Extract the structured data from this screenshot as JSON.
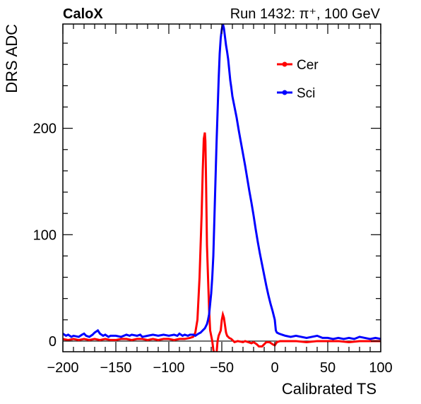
{
  "header": {
    "experiment": "CaloX",
    "run_info": "Run 1432:   π⁺, 100 GeV"
  },
  "chart_data": {
    "type": "line",
    "xlabel": "Calibrated TS",
    "ylabel": "DRS ADC",
    "xlim": [
      -200,
      100
    ],
    "ylim": [
      -10,
      298
    ],
    "x_ticks": [
      -200,
      -150,
      -100,
      -50,
      0,
      50,
      100
    ],
    "x_tick_labels": [
      "−200",
      "−150",
      "−100",
      "−50",
      "0",
      "50",
      "100"
    ],
    "y_ticks": [
      0,
      100,
      200
    ],
    "y_tick_labels": [
      "0",
      "100",
      "200"
    ],
    "zero_line": true,
    "grid": false,
    "legend_position": "top-right",
    "series": [
      {
        "name": "Cer",
        "color": "#ff0000",
        "points": [
          [
            -200,
            2
          ],
          [
            -195,
            1
          ],
          [
            -190,
            2
          ],
          [
            -185,
            1
          ],
          [
            -180,
            2
          ],
          [
            -175,
            1
          ],
          [
            -170,
            2
          ],
          [
            -165,
            1
          ],
          [
            -160,
            2
          ],
          [
            -155,
            1
          ],
          [
            -150,
            1
          ],
          [
            -145,
            2
          ],
          [
            -140,
            2
          ],
          [
            -135,
            1
          ],
          [
            -130,
            2
          ],
          [
            -125,
            2
          ],
          [
            -120,
            1
          ],
          [
            -115,
            2
          ],
          [
            -110,
            1
          ],
          [
            -105,
            2
          ],
          [
            -100,
            2
          ],
          [
            -95,
            1
          ],
          [
            -90,
            2
          ],
          [
            -85,
            2
          ],
          [
            -80,
            3
          ],
          [
            -77,
            4
          ],
          [
            -75,
            8
          ],
          [
            -73,
            20
          ],
          [
            -71,
            60
          ],
          [
            -69,
            120
          ],
          [
            -68,
            160
          ],
          [
            -67,
            190
          ],
          [
            -66,
            196
          ],
          [
            -65.5,
            188
          ],
          [
            -65,
            160
          ],
          [
            -64,
            90
          ],
          [
            -63,
            60
          ],
          [
            -62,
            30
          ],
          [
            -61,
            10
          ],
          [
            -60,
            5
          ],
          [
            -59,
            0
          ],
          [
            -58,
            -8
          ],
          [
            -57,
            -12
          ],
          [
            -55,
            -12
          ],
          [
            -54,
            0
          ],
          [
            -53,
            5
          ],
          [
            -51,
            10
          ],
          [
            -50,
            20
          ],
          [
            -49,
            25
          ],
          [
            -48,
            22
          ],
          [
            -47,
            15
          ],
          [
            -46,
            8
          ],
          [
            -45,
            5
          ],
          [
            -43,
            3
          ],
          [
            -41,
            2
          ],
          [
            -38,
            -1
          ],
          [
            -35,
            0
          ],
          [
            -30,
            -1
          ],
          [
            -28,
            0
          ],
          [
            -25,
            -1
          ],
          [
            -22,
            -2
          ],
          [
            -20,
            -1
          ],
          [
            -17,
            -3
          ],
          [
            -15,
            -5
          ],
          [
            -12,
            -5
          ],
          [
            -10,
            -3
          ],
          [
            -8,
            -1
          ],
          [
            -5,
            -1
          ],
          [
            -2,
            -3
          ],
          [
            0,
            -4
          ],
          [
            2,
            -1
          ],
          [
            5,
            0
          ],
          [
            10,
            0
          ],
          [
            20,
            0
          ],
          [
            30,
            -1
          ],
          [
            40,
            0
          ],
          [
            50,
            0
          ],
          [
            60,
            0
          ],
          [
            70,
            -1
          ],
          [
            80,
            0
          ],
          [
            90,
            0
          ],
          [
            100,
            0
          ]
        ]
      },
      {
        "name": "Sci",
        "color": "#0000ff",
        "points": [
          [
            -200,
            7
          ],
          [
            -197,
            5
          ],
          [
            -195,
            6
          ],
          [
            -192,
            4
          ],
          [
            -190,
            5
          ],
          [
            -185,
            4
          ],
          [
            -182,
            6
          ],
          [
            -180,
            7
          ],
          [
            -178,
            5
          ],
          [
            -175,
            4
          ],
          [
            -172,
            6
          ],
          [
            -170,
            8
          ],
          [
            -167,
            10
          ],
          [
            -165,
            7
          ],
          [
            -162,
            5
          ],
          [
            -160,
            6
          ],
          [
            -157,
            4
          ],
          [
            -155,
            5
          ],
          [
            -150,
            5
          ],
          [
            -145,
            4
          ],
          [
            -140,
            6
          ],
          [
            -137,
            5
          ],
          [
            -135,
            6
          ],
          [
            -130,
            5
          ],
          [
            -127,
            6
          ],
          [
            -125,
            4
          ],
          [
            -120,
            5
          ],
          [
            -115,
            6
          ],
          [
            -110,
            5
          ],
          [
            -105,
            6
          ],
          [
            -100,
            5
          ],
          [
            -95,
            6
          ],
          [
            -92,
            5
          ],
          [
            -90,
            7
          ],
          [
            -87,
            5
          ],
          [
            -85,
            6
          ],
          [
            -82,
            5
          ],
          [
            -80,
            6
          ],
          [
            -77,
            6
          ],
          [
            -75,
            5
          ],
          [
            -72,
            7
          ],
          [
            -70,
            8
          ],
          [
            -68,
            10
          ],
          [
            -66,
            12
          ],
          [
            -64,
            16
          ],
          [
            -63,
            20
          ],
          [
            -62,
            25
          ],
          [
            -61,
            35
          ],
          [
            -60,
            45
          ],
          [
            -59,
            60
          ],
          [
            -58,
            80
          ],
          [
            -57,
            115
          ],
          [
            -56,
            150
          ],
          [
            -55,
            185
          ],
          [
            -54,
            215
          ],
          [
            -53,
            245
          ],
          [
            -52,
            270
          ],
          [
            -51,
            285
          ],
          [
            -50,
            293
          ],
          [
            -49,
            298
          ],
          [
            -48,
            294
          ],
          [
            -47,
            286
          ],
          [
            -46,
            278
          ],
          [
            -45,
            272
          ],
          [
            -44,
            265
          ],
          [
            -43,
            255
          ],
          [
            -42,
            245
          ],
          [
            -41,
            238
          ],
          [
            -40,
            230
          ],
          [
            -38,
            220
          ],
          [
            -36,
            210
          ],
          [
            -34,
            198
          ],
          [
            -32,
            187
          ],
          [
            -30,
            176
          ],
          [
            -28,
            165
          ],
          [
            -26,
            153
          ],
          [
            -24,
            141
          ],
          [
            -22,
            130
          ],
          [
            -20,
            118
          ],
          [
            -18,
            105
          ],
          [
            -16,
            93
          ],
          [
            -14,
            82
          ],
          [
            -12,
            72
          ],
          [
            -10,
            62
          ],
          [
            -8,
            52
          ],
          [
            -6,
            43
          ],
          [
            -4,
            35
          ],
          [
            -2,
            28
          ],
          [
            -1,
            24
          ],
          [
            0,
            20
          ],
          [
            1,
            10
          ],
          [
            2,
            8
          ],
          [
            4,
            7
          ],
          [
            7,
            6
          ],
          [
            10,
            5
          ],
          [
            15,
            4
          ],
          [
            20,
            5
          ],
          [
            25,
            4
          ],
          [
            30,
            3
          ],
          [
            35,
            4
          ],
          [
            40,
            5
          ],
          [
            45,
            3
          ],
          [
            50,
            3
          ],
          [
            55,
            2
          ],
          [
            60,
            3
          ],
          [
            65,
            2
          ],
          [
            70,
            3
          ],
          [
            75,
            2
          ],
          [
            80,
            4
          ],
          [
            85,
            3
          ],
          [
            90,
            2
          ],
          [
            95,
            3
          ],
          [
            100,
            2
          ]
        ]
      }
    ]
  }
}
